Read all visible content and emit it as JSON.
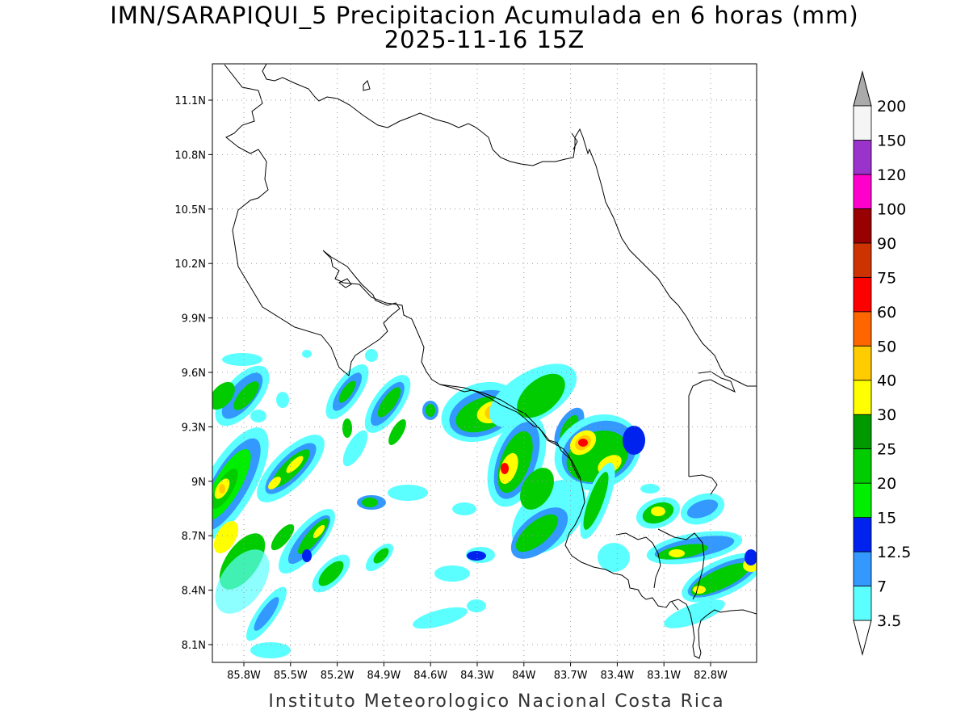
{
  "header": {
    "title_line1": "IMN/SARAPIQUI_5 Precipitacion Acumulada en 6 horas (mm)",
    "title_line2": "2025-11-16 15Z"
  },
  "map": {
    "lat_ticks": [
      "11.1N",
      "10.8N",
      "10.5N",
      "10.2N",
      "9.9N",
      "9.6N",
      "9.3N",
      "9N",
      "8.7N",
      "8.4N",
      "8.1N"
    ],
    "lon_ticks": [
      "85.8W",
      "85.5W",
      "85.2W",
      "84.9W",
      "84.6W",
      "84.3W",
      "84W",
      "83.7W",
      "83.4W",
      "83.1W",
      "82.8W"
    ]
  },
  "colorbar": {
    "levels": [
      "3.5",
      "7",
      "12.5",
      "15",
      "20",
      "25",
      "30",
      "40",
      "50",
      "60",
      "75",
      "90",
      "100",
      "120",
      "150",
      "200"
    ],
    "colors": [
      "#5cffff",
      "#3399ff",
      "#0022ee",
      "#00ee00",
      "#00cc00",
      "#009900",
      "#ffff00",
      "#ffcc00",
      "#ff6600",
      "#ff0000",
      "#cc3300",
      "#990000",
      "#ff00cc",
      "#9933cc",
      "#f5f5f5"
    ],
    "over_color": "#aaaaaa",
    "under_color": "#ffffff"
  },
  "footer": {
    "credit": "Instituto Meteorologico Nacional Costa Rica"
  }
}
